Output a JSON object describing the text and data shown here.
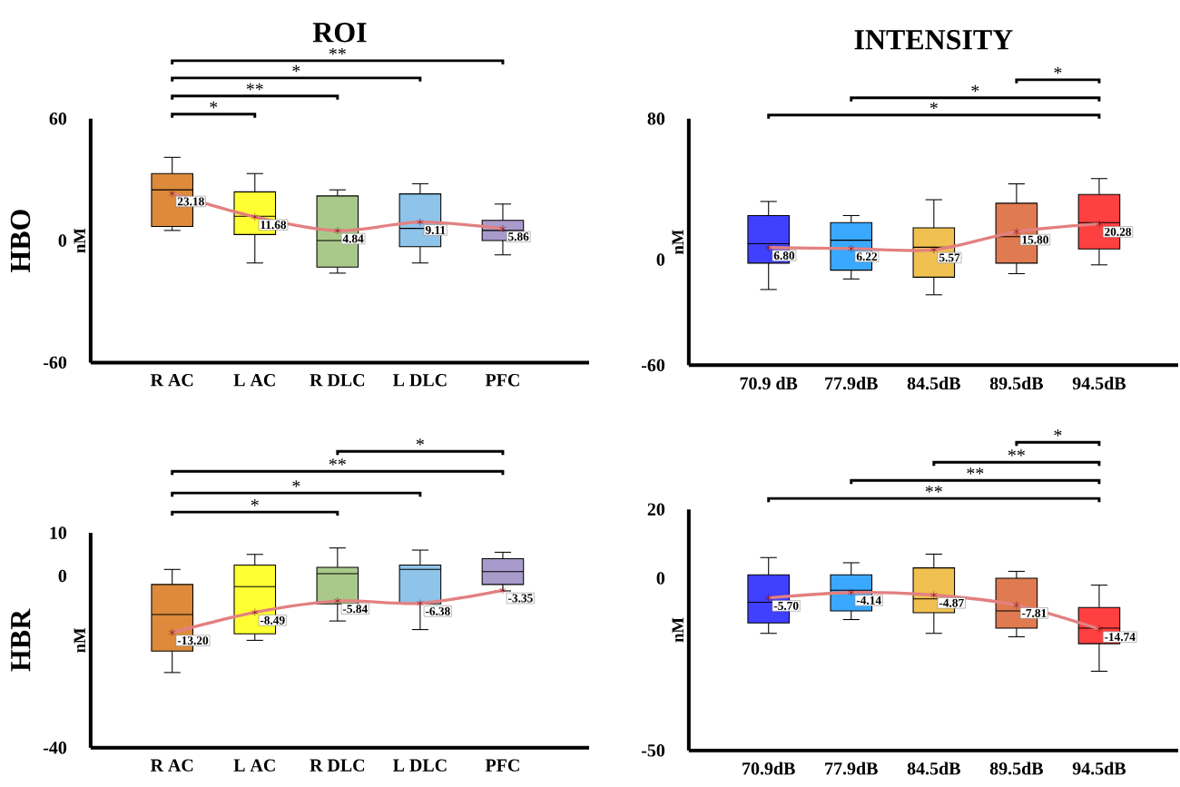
{
  "chart_data": [
    {
      "type": "box",
      "title": "ROI",
      "ylabel": "nM",
      "categories": [
        "R AC",
        "L AC",
        "R DLC",
        "L DLC",
        "PFC"
      ],
      "colors": [
        "#dd8a3c",
        "#ffff33",
        "#a9c98a",
        "#8ec3ea",
        "#a89bcc"
      ],
      "ylim": [
        -60,
        60
      ],
      "yticks": [
        -60,
        0,
        60
      ],
      "boxes": [
        {
          "low": 5,
          "q1": 7,
          "median": 25,
          "q3": 33,
          "high": 41,
          "mean": 23.18
        },
        {
          "low": -11,
          "q1": 3,
          "median": 12,
          "q3": 24,
          "high": 33,
          "mean": 11.68
        },
        {
          "low": -16,
          "q1": -13,
          "median": 0,
          "q3": 22,
          "high": 25,
          "mean": 4.84
        },
        {
          "low": -11,
          "q1": -3,
          "median": 6,
          "q3": 23,
          "high": 28,
          "mean": 9.11
        },
        {
          "low": -7,
          "q1": 0,
          "median": 5,
          "q3": 10,
          "high": 18,
          "mean": 5.86
        }
      ],
      "series": [
        {
          "type": "line",
          "color": "#e38080",
          "values": [
            23.18,
            11.68,
            4.84,
            9.11,
            5.86
          ],
          "value_labels": [
            "23.18",
            "11.68",
            "4.84",
            "9.11",
            "5.86"
          ]
        }
      ],
      "annotations": [
        "*",
        "**",
        "*",
        "**",
        "HBO"
      ]
    },
    {
      "type": "box",
      "title": "INTENSITY",
      "ylabel": "nM",
      "categories": [
        "70.9 dB",
        "77.9dB",
        "84.5dB",
        "89.5dB",
        "94.5dB"
      ],
      "colors": [
        "#4040ff",
        "#3aa8ff",
        "#f0c050",
        "#e07a50",
        "#ff4040"
      ],
      "ylim": [
        -60,
        80
      ],
      "yticks": [
        -60,
        0,
        80
      ],
      "boxes": [
        {
          "low": -17,
          "q1": -2,
          "median": 9,
          "q3": 25,
          "high": 33,
          "mean": 6.8
        },
        {
          "low": -11,
          "q1": -6,
          "median": 11,
          "q3": 21,
          "high": 25,
          "mean": 6.22
        },
        {
          "low": -20,
          "q1": -10,
          "median": 7,
          "q3": 18,
          "high": 34,
          "mean": 5.57
        },
        {
          "low": -8,
          "q1": -2,
          "median": 13,
          "q3": 32,
          "high": 43,
          "mean": 15.8
        },
        {
          "low": -3,
          "q1": 6,
          "median": 21,
          "q3": 37,
          "high": 46,
          "mean": 20.28
        }
      ],
      "series": [
        {
          "type": "line",
          "color": "#e38080",
          "values": [
            6.8,
            6.22,
            5.57,
            15.8,
            20.28
          ],
          "value_labels": [
            "6.80",
            "6.22",
            "5.57",
            "15.80",
            "20.28"
          ]
        }
      ],
      "annotations": [
        "*",
        "*",
        "*"
      ]
    },
    {
      "type": "box",
      "ylabel": "nM",
      "categories": [
        "R AC",
        "L AC",
        "R DLC",
        "L DLC",
        "PFC"
      ],
      "colors": [
        "#dd8a3c",
        "#ffff33",
        "#a9c98a",
        "#8ec3ea",
        "#a89bcc"
      ],
      "ylim": [
        -40,
        10
      ],
      "yticks": [
        -40,
        0,
        10
      ],
      "boxes": [
        {
          "low": -22.5,
          "q1": -17.5,
          "median": -9,
          "q3": -2,
          "high": 1.5,
          "mean": -13.2
        },
        {
          "low": -15,
          "q1": -13.5,
          "median": -2.5,
          "q3": 2.5,
          "high": 5,
          "mean": -8.49
        },
        {
          "low": -10.5,
          "q1": -6.5,
          "median": 0.5,
          "q3": 2,
          "high": 6.5,
          "mean": -5.84
        },
        {
          "low": -12.5,
          "q1": -6.5,
          "median": 1.5,
          "q3": 2.5,
          "high": 6,
          "mean": -6.38
        },
        {
          "low": -3.5,
          "q1": -2,
          "median": 1,
          "q3": 4,
          "high": 5.5,
          "mean": -3.35
        }
      ],
      "series": [
        {
          "type": "line",
          "color": "#e38080",
          "values": [
            -13.2,
            -8.49,
            -5.84,
            -6.38,
            -3.35
          ],
          "value_labels": [
            "-13.20",
            "-8.49",
            "-5.84",
            "-6.38",
            "-3.35"
          ]
        }
      ],
      "annotations": [
        "*",
        "*",
        "**",
        "*",
        "HBR"
      ]
    },
    {
      "type": "box",
      "ylabel": "nM",
      "categories": [
        "70.9dB",
        "77.9dB",
        "84.5dB",
        "89.5dB",
        "94.5dB"
      ],
      "colors": [
        "#4040ff",
        "#3aa8ff",
        "#f0c050",
        "#e07a50",
        "#ff4040"
      ],
      "ylim": [
        -50,
        20
      ],
      "yticks": [
        -50,
        0,
        20
      ],
      "boxes": [
        {
          "low": -16,
          "q1": -13,
          "median": -7,
          "q3": 1,
          "high": 6,
          "mean": -5.7
        },
        {
          "low": -12,
          "q1": -9.5,
          "median": -3.5,
          "q3": 1,
          "high": 4.5,
          "mean": -4.14
        },
        {
          "low": -16,
          "q1": -10,
          "median": -6,
          "q3": 3,
          "high": 7,
          "mean": -4.87
        },
        {
          "low": -17,
          "q1": -14.5,
          "median": -9.5,
          "q3": 0,
          "high": 2,
          "mean": -7.81
        },
        {
          "low": -27,
          "q1": -19,
          "median": -14.5,
          "q3": -8.5,
          "high": -2,
          "mean": -14.74
        }
      ],
      "series": [
        {
          "type": "line",
          "color": "#e38080",
          "values": [
            -5.7,
            -4.14,
            -4.87,
            -7.81,
            -14.74
          ],
          "value_labels": [
            "-5.70",
            "-4.14",
            "-4.87",
            "-7.81",
            "-14.74"
          ]
        }
      ],
      "annotations": [
        "**",
        "**",
        "**",
        "*"
      ]
    }
  ]
}
